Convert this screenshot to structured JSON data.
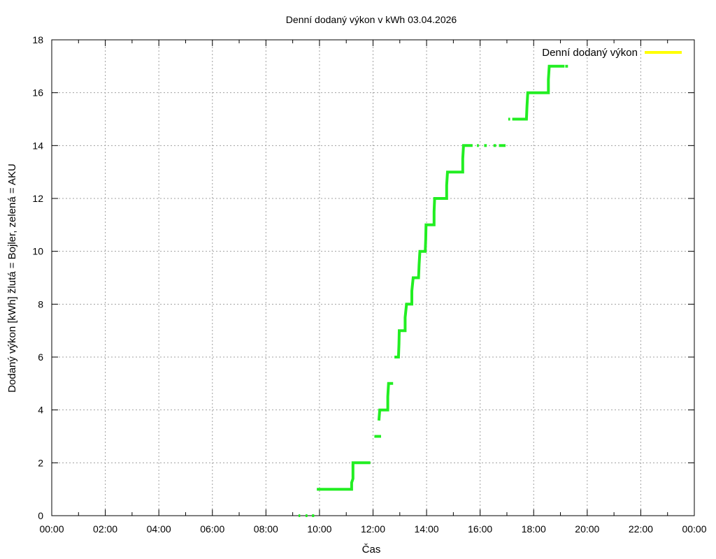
{
  "chart_data": {
    "type": "line",
    "title": "Denní dodaný výkon v kWh 03.04.2026",
    "xlabel": "Čas",
    "ylabel": "Dodaný výkon [kWh]  žlutá = Bojler, zelená = AKU",
    "xlim": [
      0,
      24
    ],
    "ylim": [
      0,
      18
    ],
    "x_ticks": [
      "00:00",
      "02:00",
      "04:00",
      "06:00",
      "08:00",
      "10:00",
      "12:00",
      "14:00",
      "16:00",
      "18:00",
      "20:00",
      "22:00",
      "00:00"
    ],
    "y_ticks": [
      0,
      2,
      4,
      6,
      8,
      10,
      12,
      14,
      16,
      18
    ],
    "grid": true,
    "legend_position": "top-right",
    "series": [
      {
        "name": "Denní dodaný výkon",
        "color": "#ffff00",
        "segments": []
      },
      {
        "color": "#22ee22",
        "segments": [
          [
            [
              9.22,
              0
            ],
            [
              9.28,
              0
            ]
          ],
          [
            [
              9.48,
              0
            ],
            [
              9.55,
              0
            ]
          ],
          [
            [
              9.72,
              0
            ],
            [
              9.8,
              0
            ]
          ],
          [
            [
              9.9,
              1
            ],
            [
              11.2,
              1
            ],
            [
              11.2,
              1.25
            ],
            [
              11.25,
              1.4
            ],
            [
              11.25,
              2
            ],
            [
              11.9,
              2
            ]
          ],
          [
            [
              12.05,
              3
            ],
            [
              12.3,
              3
            ]
          ],
          [
            [
              12.22,
              3.6
            ],
            [
              12.25,
              4
            ],
            [
              12.55,
              4
            ],
            [
              12.55,
              4.5
            ],
            [
              12.58,
              5
            ],
            [
              12.75,
              5
            ]
          ],
          [
            [
              12.8,
              6
            ],
            [
              12.95,
              6
            ],
            [
              12.97,
              6.5
            ],
            [
              12.98,
              7
            ],
            [
              13.2,
              7
            ],
            [
              13.2,
              7.5
            ],
            [
              13.25,
              8
            ],
            [
              13.45,
              8
            ],
            [
              13.45,
              8.5
            ],
            [
              13.5,
              9
            ],
            [
              13.7,
              9
            ],
            [
              13.72,
              9.5
            ],
            [
              13.75,
              10
            ],
            [
              13.95,
              10
            ],
            [
              13.97,
              10.5
            ],
            [
              13.98,
              11
            ],
            [
              14.28,
              11
            ],
            [
              14.28,
              11.5
            ],
            [
              14.3,
              12
            ],
            [
              14.75,
              12
            ],
            [
              14.75,
              12.5
            ],
            [
              14.78,
              13
            ],
            [
              15.35,
              13
            ],
            [
              15.35,
              13.5
            ],
            [
              15.38,
              14
            ],
            [
              15.72,
              14
            ]
          ],
          [
            [
              15.88,
              14
            ],
            [
              15.95,
              14
            ]
          ],
          [
            [
              16.15,
              14
            ],
            [
              16.25,
              14
            ]
          ],
          [
            [
              16.5,
              14
            ],
            [
              16.6,
              14
            ]
          ],
          [
            [
              16.7,
              14
            ],
            [
              16.95,
              14
            ]
          ],
          [
            [
              17.05,
              15
            ],
            [
              17.12,
              15
            ]
          ],
          [
            [
              17.2,
              15
            ],
            [
              17.73,
              15
            ],
            [
              17.75,
              15.5
            ],
            [
              17.78,
              16
            ],
            [
              18.55,
              16
            ],
            [
              18.55,
              16.5
            ],
            [
              18.58,
              17
            ],
            [
              19.15,
              17
            ]
          ],
          [
            [
              19.18,
              17
            ],
            [
              19.28,
              17
            ]
          ]
        ]
      }
    ]
  }
}
